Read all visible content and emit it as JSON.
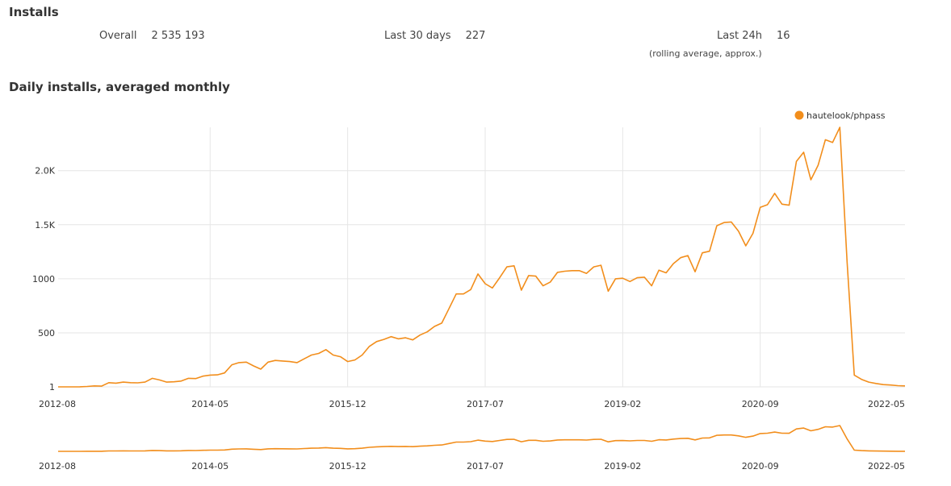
{
  "installs": {
    "title": "Installs",
    "overall_label": "Overall",
    "overall_value": "2 535 193",
    "last30_label": "Last 30 days",
    "last30_value": "227",
    "last24_label": "Last 24h",
    "last24_value": "16",
    "last24_note": "(rolling average, approx.)"
  },
  "chart_data": {
    "type": "line",
    "title": "Daily installs, averaged monthly",
    "series_name": "hautelook/phpass",
    "color": "#f28e1c",
    "grid": true,
    "legend": "top-right",
    "x_ticks": [
      "2012-08",
      "2014-05",
      "2015-12",
      "2017-07",
      "2019-02",
      "2020-09",
      "2022-05"
    ],
    "y_ticks": [
      "1",
      "500",
      "1000",
      "1.5K",
      "2.0K"
    ],
    "y_tick_values": [
      1,
      500,
      1000,
      1500,
      2000
    ],
    "ylim": [
      1,
      2400
    ],
    "x_start": "2012-08",
    "x_end": "2022-05",
    "values": [
      1,
      1,
      1,
      2,
      5,
      10,
      8,
      40,
      35,
      45,
      40,
      38,
      45,
      80,
      65,
      45,
      48,
      55,
      80,
      78,
      100,
      110,
      112,
      130,
      205,
      225,
      230,
      195,
      165,
      230,
      245,
      240,
      235,
      225,
      260,
      295,
      310,
      345,
      295,
      280,
      235,
      250,
      295,
      375,
      420,
      440,
      465,
      445,
      455,
      435,
      480,
      510,
      560,
      590,
      725,
      860,
      860,
      900,
      1045,
      955,
      915,
      1010,
      1110,
      1120,
      895,
      1030,
      1025,
      935,
      970,
      1060,
      1070,
      1075,
      1075,
      1050,
      1110,
      1125,
      885,
      1000,
      1005,
      975,
      1010,
      1015,
      935,
      1080,
      1055,
      1140,
      1195,
      1215,
      1065,
      1240,
      1255,
      1490,
      1520,
      1525,
      1440,
      1305,
      1420,
      1660,
      1685,
      1790,
      1690,
      1680,
      2085,
      2170,
      1915,
      2050,
      2285,
      2260,
      2400,
      1155,
      110,
      70,
      45,
      32,
      22,
      18,
      12,
      10
    ]
  }
}
